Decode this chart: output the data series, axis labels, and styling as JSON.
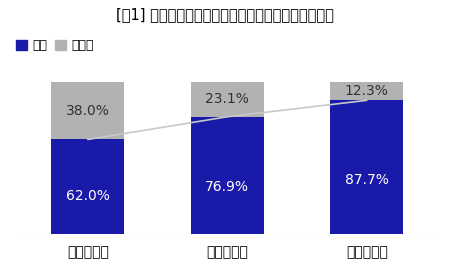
{
  "title": "[図1] 健康経営への取り組み状況（従業員数規模別）",
  "categories": [
    "小規模企業",
    "中規模企業",
    "大規模企業"
  ],
  "yes_values": [
    62.0,
    76.9,
    87.7
  ],
  "no_values": [
    38.0,
    23.1,
    12.3
  ],
  "yes_color": "#1a1aaa",
  "no_color": "#b2b2b2",
  "line_color": "#c8c8c8",
  "background_color": "#ffffff",
  "legend_yes": "はい",
  "legend_no": "いいえ",
  "title_fontsize": 10.5,
  "label_fontsize": 10,
  "tick_fontsize": 9.5,
  "legend_fontsize": 9,
  "bar_width": 0.52
}
